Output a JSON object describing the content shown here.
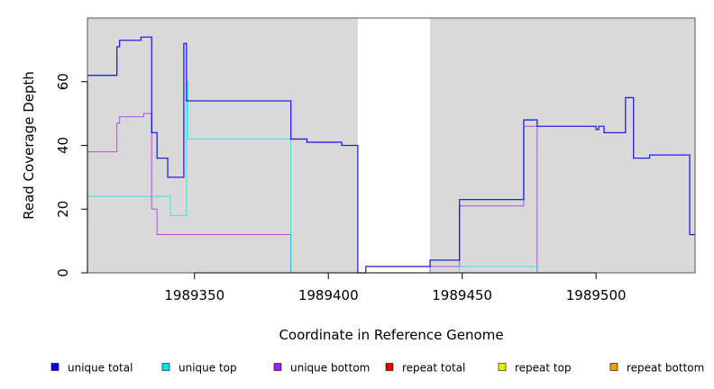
{
  "chart_data": {
    "type": "line",
    "xlabel": "Coordinate in Reference Genome",
    "ylabel": "Read Coverage Depth",
    "xlim": [
      1989310,
      1989537
    ],
    "ylim": [
      0,
      80
    ],
    "x_ticks": [
      1989350,
      1989400,
      1989450,
      1989500
    ],
    "x_tick_labels": [
      "1989350",
      "1989400",
      "1989450",
      "1989500"
    ],
    "y_ticks": [
      0,
      20,
      40,
      60
    ],
    "y_tick_labels": [
      "0",
      "20",
      "40",
      "60"
    ],
    "grid": false,
    "shaded_regions": [
      {
        "x": [
          1989310,
          1989411
        ],
        "color": "#d9d9d9"
      },
      {
        "x": [
          1989438,
          1989537
        ],
        "color": "#d9d9d9"
      }
    ],
    "legend_position": "bottom",
    "series": [
      {
        "name": "unique total",
        "color": "#0000ee",
        "points": [
          [
            1989310,
            62
          ],
          [
            1989321,
            62
          ],
          [
            1989321,
            71
          ],
          [
            1989322,
            71
          ],
          [
            1989322,
            73
          ],
          [
            1989330,
            73
          ],
          [
            1989330,
            74
          ],
          [
            1989334,
            74
          ],
          [
            1989334,
            44
          ],
          [
            1989336,
            44
          ],
          [
            1989336,
            36
          ],
          [
            1989340,
            36
          ],
          [
            1989340,
            30
          ],
          [
            1989346,
            30
          ],
          [
            1989346,
            72
          ],
          [
            1989347,
            72
          ],
          [
            1989347,
            54
          ],
          [
            1989386,
            54
          ],
          [
            1989386,
            42
          ],
          [
            1989392,
            42
          ],
          [
            1989392,
            41
          ],
          [
            1989405,
            41
          ],
          [
            1989405,
            40
          ],
          [
            1989411,
            40
          ],
          [
            1989411,
            0
          ],
          [
            1989414,
            0
          ],
          [
            1989414,
            2
          ],
          [
            1989438,
            2
          ],
          [
            1989438,
            4
          ],
          [
            1989449,
            4
          ],
          [
            1989449,
            23
          ],
          [
            1989473,
            23
          ],
          [
            1989473,
            48
          ],
          [
            1989478,
            48
          ],
          [
            1989478,
            46
          ],
          [
            1989500,
            46
          ],
          [
            1989500,
            45
          ],
          [
            1989501,
            45
          ],
          [
            1989501,
            46
          ],
          [
            1989503,
            46
          ],
          [
            1989503,
            44
          ],
          [
            1989511,
            44
          ],
          [
            1989511,
            55
          ],
          [
            1989514,
            55
          ],
          [
            1989514,
            36
          ],
          [
            1989520,
            36
          ],
          [
            1989520,
            37
          ],
          [
            1989535,
            37
          ],
          [
            1989535,
            12
          ],
          [
            1989537,
            12
          ]
        ]
      },
      {
        "name": "unique top",
        "color": "#00e5e5",
        "points": [
          [
            1989310,
            24
          ],
          [
            1989341,
            24
          ],
          [
            1989341,
            18
          ],
          [
            1989347,
            18
          ],
          [
            1989347,
            60
          ],
          [
            1989347.5,
            60
          ],
          [
            1989347.5,
            42
          ],
          [
            1989386,
            42
          ],
          [
            1989386,
            0
          ],
          [
            1989411,
            0
          ],
          [
            1989449,
            0
          ],
          [
            1989449,
            2
          ],
          [
            1989478,
            2
          ],
          [
            1989478,
            0
          ],
          [
            1989537,
            0
          ]
        ]
      },
      {
        "name": "unique bottom",
        "color": "#a020f0",
        "points": [
          [
            1989310,
            38
          ],
          [
            1989321,
            38
          ],
          [
            1989321,
            47
          ],
          [
            1989322,
            47
          ],
          [
            1989322,
            49
          ],
          [
            1989331,
            49
          ],
          [
            1989331,
            50
          ],
          [
            1989334,
            50
          ],
          [
            1989334,
            20
          ],
          [
            1989336,
            20
          ],
          [
            1989336,
            12
          ],
          [
            1989386,
            12
          ],
          [
            1989386,
            0
          ],
          [
            1989411,
            0
          ],
          [
            1989438,
            0
          ],
          [
            1989438,
            2
          ],
          [
            1989449,
            2
          ],
          [
            1989449,
            21
          ],
          [
            1989473,
            21
          ],
          [
            1989473,
            46
          ],
          [
            1989478,
            46
          ],
          [
            1989478,
            0
          ],
          [
            1989537,
            0
          ]
        ]
      },
      {
        "name": "repeat total",
        "color": "#ee0000",
        "points": [
          [
            1989310,
            0
          ],
          [
            1989537,
            0
          ]
        ]
      },
      {
        "name": "repeat top",
        "color": "#eeee00",
        "points": [
          [
            1989310,
            0
          ],
          [
            1989537,
            0
          ]
        ]
      },
      {
        "name": "repeat bottom",
        "color": "#ee9a00",
        "points": [
          [
            1989310,
            0
          ],
          [
            1989537,
            0
          ]
        ]
      }
    ]
  }
}
